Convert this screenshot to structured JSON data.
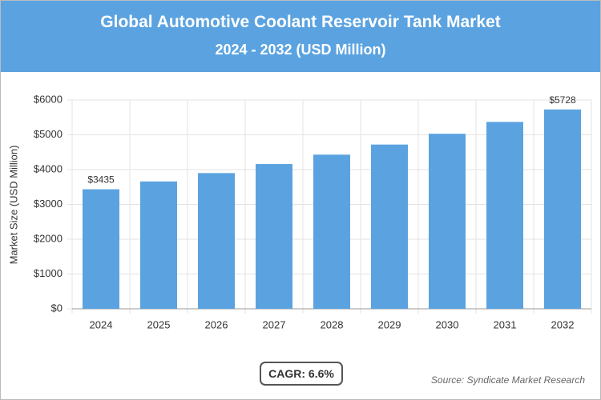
{
  "chart_data": {
    "type": "bar",
    "title": "Global Automotive Coolant Reservoir Tank Market",
    "subtitle": "2024 - 2032 (USD Million)",
    "y_label": "Market Size (USD Million)",
    "categories": [
      "2024",
      "2025",
      "2026",
      "2027",
      "2028",
      "2029",
      "2030",
      "2031",
      "2032"
    ],
    "values": [
      3435,
      3660,
      3900,
      4160,
      4430,
      4720,
      5030,
      5370,
      5728
    ],
    "value_labels": [
      "$3435",
      null,
      null,
      null,
      null,
      null,
      null,
      null,
      "$5728"
    ],
    "color": "#5ba3e0",
    "ylim": [
      0,
      6000
    ],
    "yticks": [
      {
        "value": 0,
        "label": "$0"
      },
      {
        "value": 1000,
        "label": "$1000"
      },
      {
        "value": 2000,
        "label": "$2000"
      },
      {
        "value": 3000,
        "label": "$3000"
      },
      {
        "value": 4000,
        "label": "$4000"
      },
      {
        "value": 5000,
        "label": "$5000"
      },
      {
        "value": 6000,
        "label": "$6000"
      }
    ],
    "grid": true,
    "annotation": "CAGR: 6.6%",
    "source": "Source: Syndicate Market Research"
  }
}
